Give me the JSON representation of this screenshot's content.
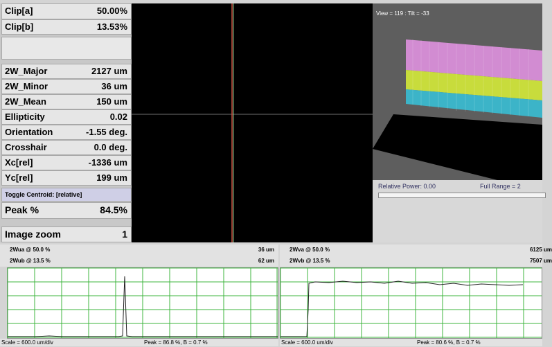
{
  "metrics": {
    "clip_a": {
      "label": "Clip[a]",
      "value": "50.00%"
    },
    "clip_b": {
      "label": "Clip[b]",
      "value": "13.53%"
    },
    "w_major": {
      "label": "2W_Major",
      "value": "2127 um"
    },
    "w_minor": {
      "label": "2W_Minor",
      "value": "36 um"
    },
    "w_mean": {
      "label": "2W_Mean",
      "value": "150 um"
    },
    "ellipticity": {
      "label": "Ellipticity",
      "value": "0.02"
    },
    "orientation": {
      "label": "Orientation",
      "value": "-1.55 deg."
    },
    "crosshair": {
      "label": "Crosshair",
      "value": "0.0 deg."
    },
    "xc": {
      "label": "Xc[rel]",
      "value": "-1336 um"
    },
    "yc": {
      "label": "Yc[rel]",
      "value": "199 um"
    },
    "toggle_centroid": {
      "label": "Toggle Centroid:  [relative]"
    },
    "peak": {
      "label": "Peak %",
      "value": "84.5%"
    },
    "zoom": {
      "label": "Image zoom",
      "value": "1"
    }
  },
  "view3d": {
    "title": "View = 119 : Tilt = -33",
    "relative_power": "Relative Power: 0.00",
    "full_range": "Full Range = 2",
    "band_colors": [
      "#d28cd2",
      "#c8dc3c",
      "#3cb4c8"
    ]
  },
  "profile_u": {
    "line1_label": "2Wua @ 50.0 %",
    "line1_value": "36 um",
    "line2_label": "2Wub @ 13.5 %",
    "line2_value": "62 um",
    "scale": "Scale = 600.0 um/div",
    "peak": "Peak = 86.8 %,  B = 0.7 %"
  },
  "profile_v": {
    "line1_label": "2Wva @ 50.0 %",
    "line1_value": "6125 um",
    "line2_label": "2Wvb @ 13.5 %",
    "line2_value": "7507 um",
    "scale": "Scale = 600.0 um/div",
    "peak": "Peak = 80.6 %,  B = 0.7 %"
  },
  "colors": {
    "grid": "#3cb43c",
    "crosshair_v": "#c85040",
    "crosshair_h": "#707070"
  }
}
